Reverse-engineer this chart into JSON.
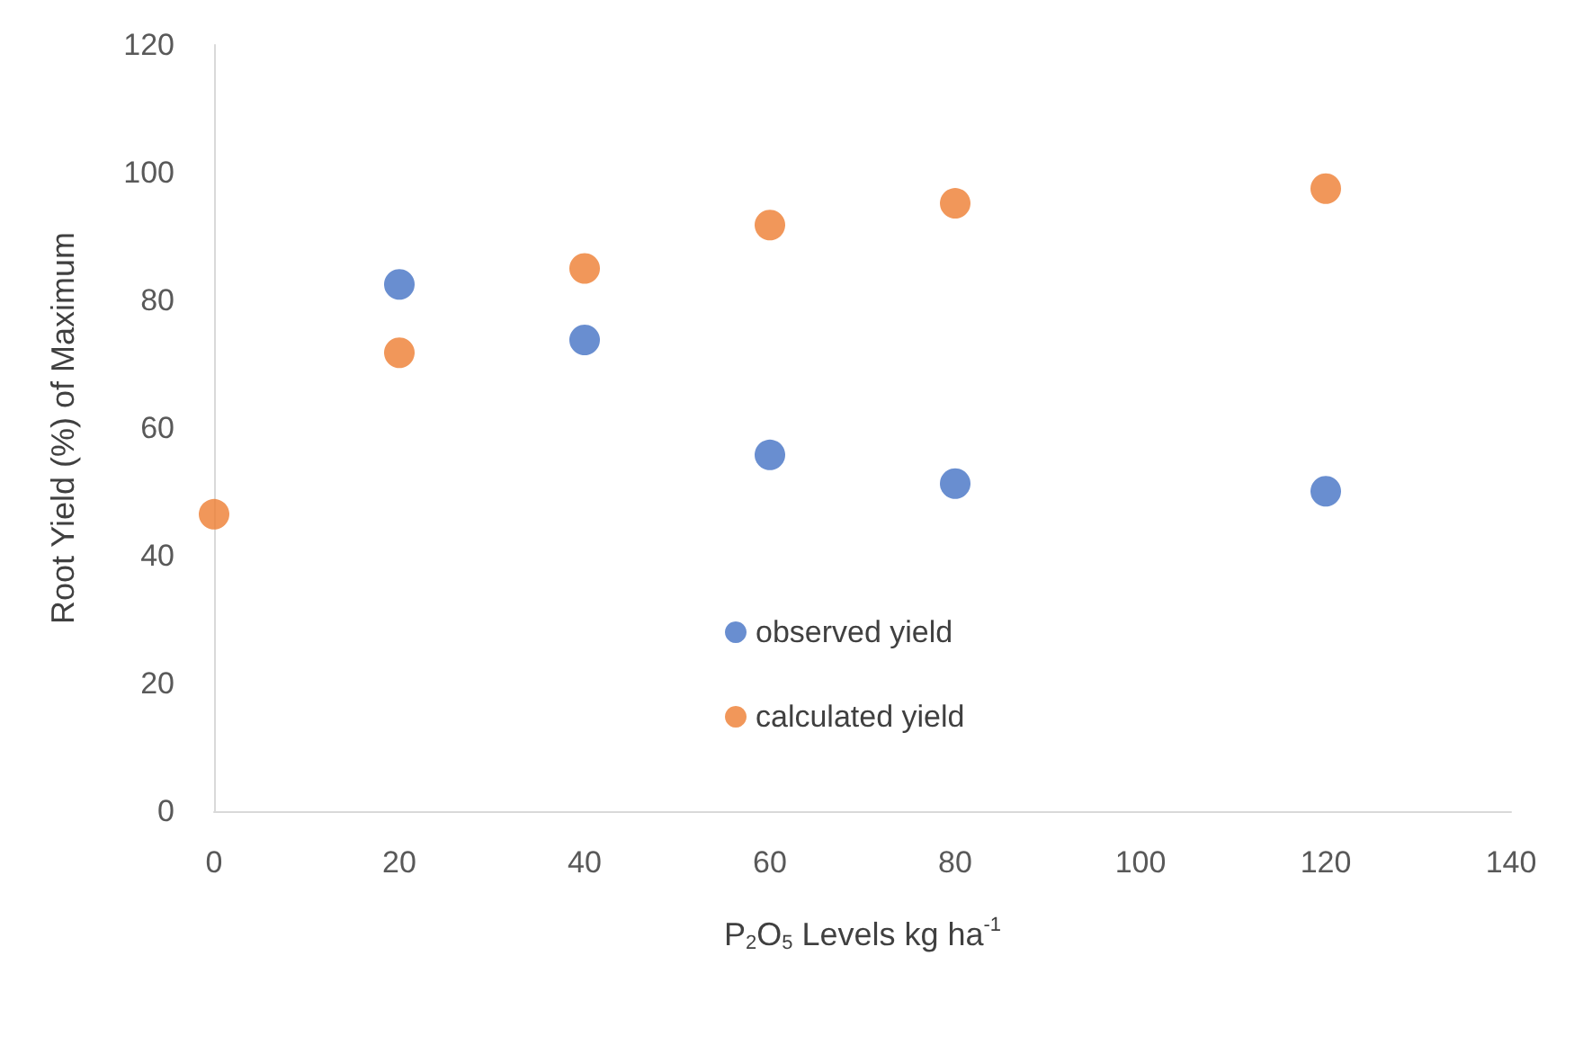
{
  "chart_data": {
    "type": "scatter",
    "xlabel": "P$_{2}$O$_{5}$ Levels kg ha$^{-1}$",
    "ylabel": "Root Yield (%) of Maximum",
    "x": [
      0,
      20,
      40,
      60,
      80,
      120
    ],
    "series": [
      {
        "name": "observed yield",
        "color": "#4472c4",
        "values": [
          null,
          82.5,
          73.8,
          55.8,
          51.3,
          50.1
        ]
      },
      {
        "name": "calculated yield",
        "color": "#ed7d31",
        "values": [
          46.5,
          71.8,
          85,
          91.8,
          95.2,
          97.5
        ]
      }
    ],
    "xlim": [
      0,
      140
    ],
    "xticks": [
      0,
      20,
      40,
      60,
      80,
      100,
      120,
      140
    ],
    "ylim": [
      0,
      120
    ],
    "yticks": [
      0,
      20,
      40,
      60,
      80,
      100,
      120
    ],
    "grid": false,
    "legend": "bottom",
    "marker": "circle"
  }
}
